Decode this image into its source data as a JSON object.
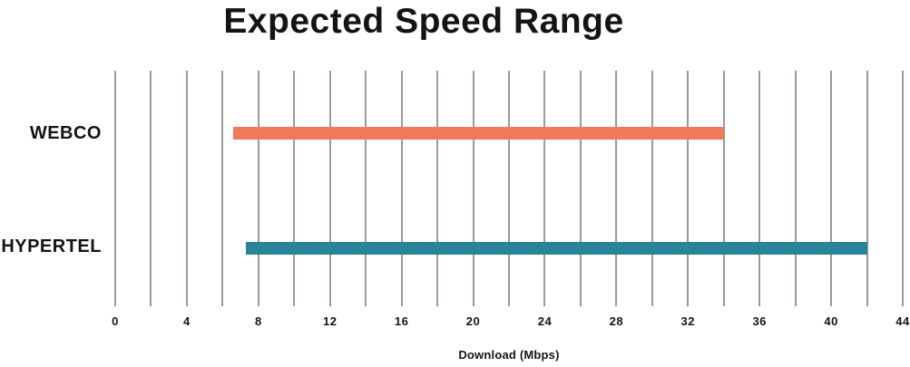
{
  "chart_data": {
    "type": "bar",
    "subtype": "horizontal-range",
    "title": "Expected Speed Range",
    "xlabel": "Download (Mbps)",
    "categories": [
      "WEBCO",
      "HYPERTEL"
    ],
    "ranges": [
      {
        "label": "WEBCO",
        "min": 6.6,
        "max": 34,
        "color": "#f0795a"
      },
      {
        "label": "HYPERTEL",
        "min": 7.3,
        "max": 42,
        "color": "#29839a"
      }
    ],
    "xlim": [
      0,
      44
    ],
    "x_ticks": [
      0,
      4,
      8,
      12,
      16,
      20,
      24,
      28,
      32,
      36,
      40,
      44
    ],
    "x_grid_step": 2,
    "grid": true,
    "legend": "none",
    "colors": {
      "gridline": "#9d9993",
      "text": "#141414",
      "background": "#ffffff"
    }
  }
}
